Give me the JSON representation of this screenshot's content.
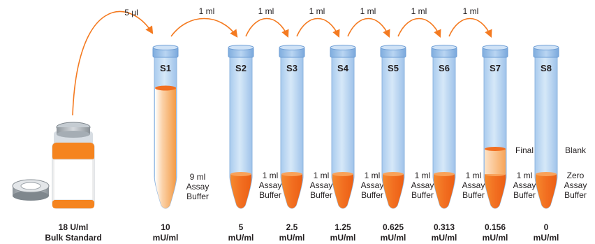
{
  "colors": {
    "arrow": "#f47a20",
    "tube_body": "#bcd8f4",
    "tube_cap": "#8fb8e6",
    "liquid_tip": "#f26f21",
    "sample_fill": "#f8a35a",
    "bottle_band": "#f5841f",
    "bottle_cap": "#b8bec4"
  },
  "transfers": [
    {
      "label": "5 µl"
    },
    {
      "label": "1 ml"
    },
    {
      "label": "1 ml"
    },
    {
      "label": "1 ml"
    },
    {
      "label": "1 ml"
    },
    {
      "label": "1 ml"
    },
    {
      "label": "1 ml"
    }
  ],
  "stock": {
    "concentration": "18 U/ml",
    "name": "Bulk Standard"
  },
  "tubes": [
    {
      "id": "S1",
      "buffer": [
        "9 ml",
        "Assay",
        "Buffer"
      ],
      "value": "10",
      "unit": "mU/ml",
      "note": ""
    },
    {
      "id": "S2",
      "buffer": [
        "1 ml",
        "Assay",
        "Buffer"
      ],
      "value": "5",
      "unit": "mU/ml",
      "note": ""
    },
    {
      "id": "S3",
      "buffer": [
        "1 ml",
        "Assay",
        "Buffer"
      ],
      "value": "2.5",
      "unit": "mU/ml",
      "note": ""
    },
    {
      "id": "S4",
      "buffer": [
        "1 ml",
        "Assay",
        "Buffer"
      ],
      "value": "1.25",
      "unit": "mU/ml",
      "note": ""
    },
    {
      "id": "S5",
      "buffer": [
        "1 ml",
        "Assay",
        "Buffer"
      ],
      "value": "0.625",
      "unit": "mU/ml",
      "note": ""
    },
    {
      "id": "S6",
      "buffer": [
        "1 ml",
        "Assay",
        "Buffer"
      ],
      "value": "0.313",
      "unit": "mU/ml",
      "note": ""
    },
    {
      "id": "S7",
      "buffer": [
        "1 ml",
        "Assay",
        "Buffer"
      ],
      "value": "0.156",
      "unit": "mU/ml",
      "note": "Final"
    },
    {
      "id": "S8",
      "buffer": [
        "Zero",
        "Assay",
        "Buffer"
      ],
      "value": "0",
      "unit": "mU/ml",
      "note": "Blank"
    }
  ]
}
